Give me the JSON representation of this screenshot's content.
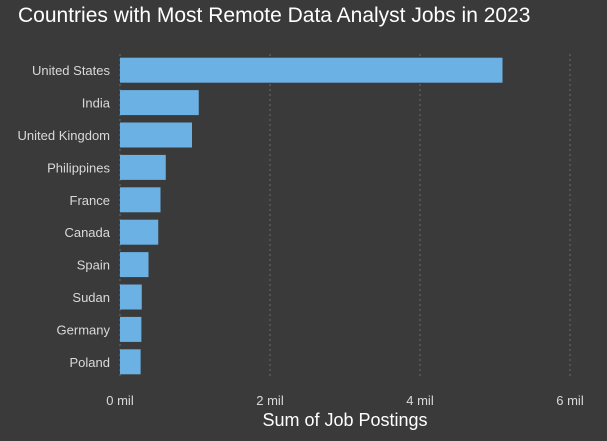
{
  "chart_data": {
    "type": "bar",
    "orientation": "horizontal",
    "title": "Countries with Most Remote Data Analyst Jobs in 2023",
    "xlabel": "Sum of Job Postings",
    "ylabel": "",
    "categories": [
      "United States",
      "India",
      "United Kingdom",
      "Philippines",
      "France",
      "Canada",
      "Spain",
      "Sudan",
      "Germany",
      "Poland"
    ],
    "values": [
      5100000,
      1050000,
      960000,
      610000,
      540000,
      510000,
      380000,
      290000,
      285000,
      275000
    ],
    "xlim": [
      0,
      6000000
    ],
    "xticks": [
      0,
      2000000,
      4000000,
      6000000
    ],
    "xtick_labels": [
      "0 mil",
      "2 mil",
      "4 mil",
      "6 mil"
    ],
    "grid": true,
    "colors": {
      "bar": "#6cb1e3",
      "background": "#3a3a3a",
      "grid": "#6a6a6a"
    }
  }
}
